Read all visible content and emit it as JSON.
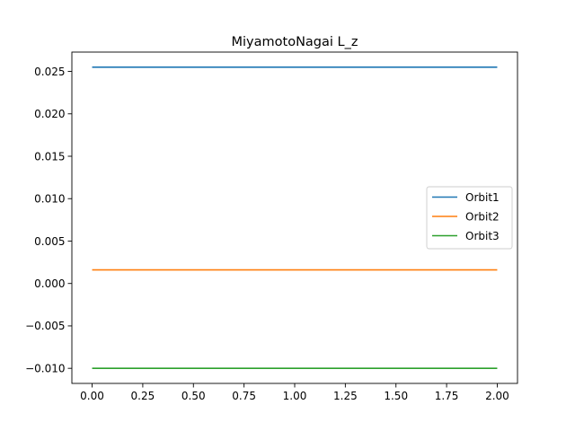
{
  "chart_data": {
    "type": "line",
    "title": "MiyamotoNagai L_z",
    "xlabel": "",
    "ylabel": "",
    "xlim": [
      -0.1,
      2.1
    ],
    "ylim": [
      -0.01178,
      0.02728
    ],
    "x_ticks": [
      0.0,
      0.25,
      0.5,
      0.75,
      1.0,
      1.25,
      1.5,
      1.75,
      2.0
    ],
    "x_tick_labels": [
      "0.00",
      "0.25",
      "0.50",
      "0.75",
      "1.00",
      "1.25",
      "1.50",
      "1.75",
      "2.00"
    ],
    "y_ticks": [
      -0.01,
      -0.005,
      0.0,
      0.005,
      0.01,
      0.015,
      0.02,
      0.025
    ],
    "y_tick_labels": [
      "−0.010",
      "−0.005",
      "0.000",
      "0.005",
      "0.010",
      "0.015",
      "0.020",
      "0.025"
    ],
    "grid": false,
    "legend": {
      "position": "center-right"
    },
    "series": [
      {
        "name": "Orbit1",
        "color": "#1f77b4",
        "x": [
          0.0,
          2.0
        ],
        "y": [
          0.0255,
          0.0255
        ]
      },
      {
        "name": "Orbit2",
        "color": "#ff7f0e",
        "x": [
          0.0,
          2.0
        ],
        "y": [
          0.0016,
          0.0016
        ]
      },
      {
        "name": "Orbit3",
        "color": "#2ca02c",
        "x": [
          0.0,
          2.0
        ],
        "y": [
          -0.01,
          -0.01
        ]
      }
    ]
  }
}
